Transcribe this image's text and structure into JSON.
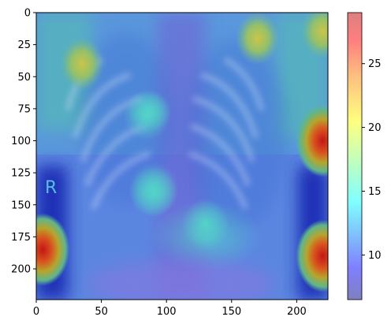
{
  "chart_data": {
    "type": "heatmap",
    "title": "",
    "xlabel": "",
    "ylabel": "",
    "image_extent": {
      "x": [
        0,
        224
      ],
      "y": [
        0,
        224
      ]
    },
    "x_ticks": [
      0,
      50,
      100,
      150,
      200
    ],
    "y_ticks": [
      0,
      25,
      50,
      75,
      100,
      125,
      150,
      175,
      200
    ],
    "y_axis_inverted": true,
    "colorbar": {
      "colormap": "jet",
      "alpha": 0.5,
      "range": [
        6.5,
        29
      ],
      "ticks": [
        10,
        15,
        20,
        25
      ]
    },
    "overlay_text": "R",
    "heat_spots": [
      {
        "x": 5,
        "y": 185,
        "value": 28.5
      },
      {
        "x": 220,
        "y": 100,
        "value": 28.5
      },
      {
        "x": 220,
        "y": 190,
        "value": 27
      },
      {
        "x": 220,
        "y": 15,
        "value": 24
      },
      {
        "x": 35,
        "y": 40,
        "value": 20
      },
      {
        "x": 170,
        "y": 20,
        "value": 19
      },
      {
        "x": 85,
        "y": 80,
        "value": 16
      },
      {
        "x": 90,
        "y": 140,
        "value": 16
      },
      {
        "x": 130,
        "y": 165,
        "value": 15
      }
    ],
    "grid": false,
    "legend": "none"
  }
}
